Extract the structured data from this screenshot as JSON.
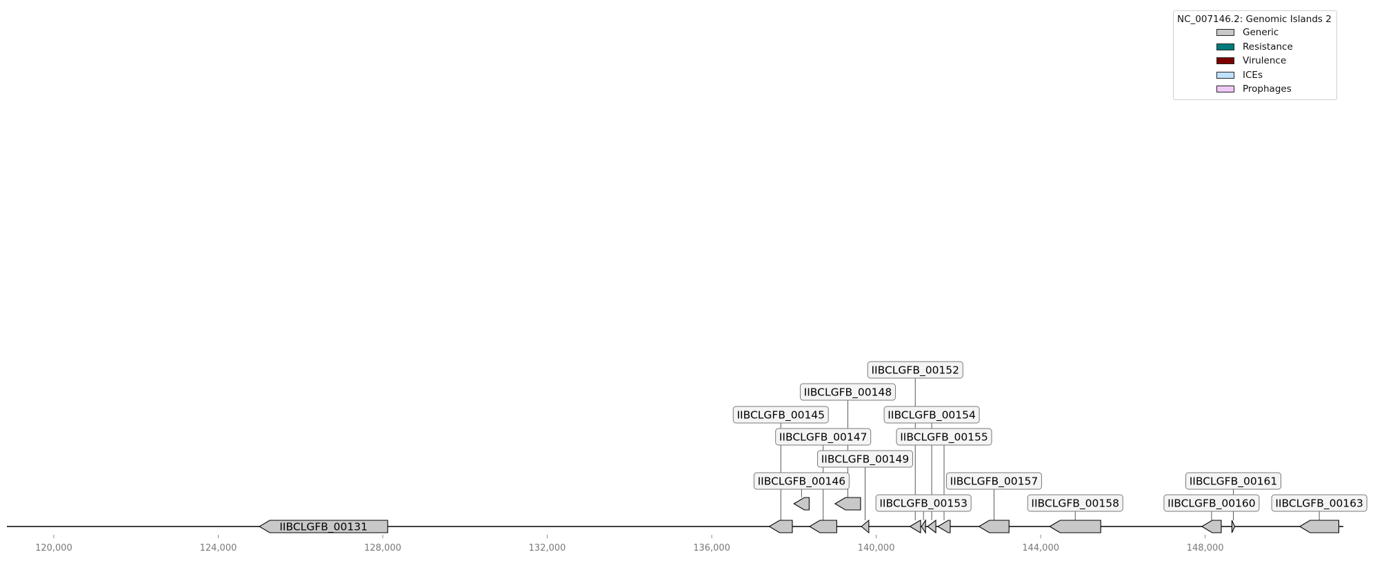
{
  "record": "NC_007146.2",
  "legend": {
    "title": "NC_007146.2: Genomic Islands 2",
    "items": [
      {
        "label": "Generic",
        "color": "#c8c8c8"
      },
      {
        "label": "Resistance",
        "color": "#007b7b"
      },
      {
        "label": "Virulence",
        "color": "#7b0000"
      },
      {
        "label": "ICEs",
        "color": "#c0e0ff"
      },
      {
        "label": "Prophages",
        "color": "#f0c8f8"
      }
    ]
  },
  "axis": {
    "start": 118860,
    "end": 151360,
    "ticks": [
      120000,
      124000,
      128000,
      132000,
      136000,
      140000,
      144000,
      148000
    ],
    "tick_labels": [
      "120,000",
      "124,000",
      "128,000",
      "132,000",
      "136,000",
      "140,000",
      "144,000",
      "148,000"
    ]
  },
  "genes": [
    {
      "id": "IIBCLGFB_00131",
      "start": 125000,
      "end": 128120,
      "strand": -1,
      "label": "IIBCLGFB_00131",
      "label_inside": true
    },
    {
      "id": "IIBCLGFB_00145",
      "start": 137400,
      "end": 137960,
      "strand": -1,
      "label": "IIBCLGFB_00145",
      "level": 4
    },
    {
      "id": "IIBCLGFB_00146",
      "start": 138000,
      "end": 138370,
      "strand": -1,
      "label": "IIBCLGFB_00146",
      "level": 1,
      "raised": true
    },
    {
      "id": "IIBCLGFB_00147",
      "start": 138380,
      "end": 139040,
      "strand": -1,
      "label": "IIBCLGFB_00147",
      "level": 3
    },
    {
      "id": "IIBCLGFB_00148",
      "start": 139000,
      "end": 139620,
      "strand": -1,
      "label": "IIBCLGFB_00148",
      "level": 5,
      "raised": true
    },
    {
      "id": "IIBCLGFB_00149",
      "start": 139640,
      "end": 139820,
      "strand": -1,
      "label": "IIBCLGFB_00149",
      "level": 2
    },
    {
      "id": "IIBCLGFB_00152",
      "start": 140820,
      "end": 141080,
      "strand": -1,
      "label": "IIBCLGFB_00152",
      "level": 6
    },
    {
      "id": "IIBCLGFB_00153",
      "start": 141100,
      "end": 141200,
      "strand": -1,
      "label": "IIBCLGFB_00153",
      "level": 0
    },
    {
      "id": "IIBCLGFB_00154",
      "start": 141250,
      "end": 141450,
      "strand": -1,
      "label": "IIBCLGFB_00154",
      "level": 4
    },
    {
      "id": "IIBCLGFB_00155",
      "start": 141500,
      "end": 141800,
      "strand": -1,
      "label": "IIBCLGFB_00155",
      "level": 3
    },
    {
      "id": "IIBCLGFB_00157",
      "start": 142500,
      "end": 143230,
      "strand": -1,
      "label": "IIBCLGFB_00157",
      "level": 1
    },
    {
      "id": "IIBCLGFB_00158",
      "start": 144220,
      "end": 145460,
      "strand": -1,
      "label": "IIBCLGFB_00158",
      "level": 0
    },
    {
      "id": "IIBCLGFB_00160",
      "start": 147920,
      "end": 148390,
      "strand": -1,
      "label": "IIBCLGFB_00160",
      "level": 0
    },
    {
      "id": "IIBCLGFB_00161",
      "start": 148650,
      "end": 148720,
      "strand": 1,
      "label": "IIBCLGFB_00161",
      "level": 1
    },
    {
      "id": "IIBCLGFB_00163",
      "start": 150300,
      "end": 151250,
      "strand": -1,
      "label": "IIBCLGFB_00163",
      "level": 0
    }
  ]
}
